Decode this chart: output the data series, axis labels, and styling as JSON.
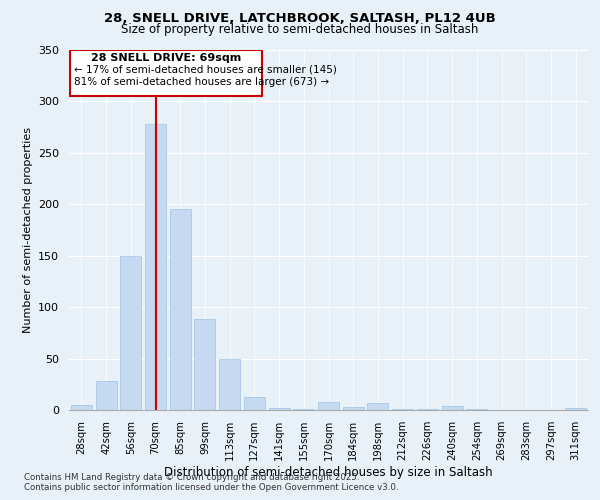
{
  "title_line1": "28, SNELL DRIVE, LATCHBROOK, SALTASH, PL12 4UB",
  "title_line2": "Size of property relative to semi-detached houses in Saltash",
  "xlabel": "Distribution of semi-detached houses by size in Saltash",
  "ylabel": "Number of semi-detached properties",
  "footer_line1": "Contains HM Land Registry data © Crown copyright and database right 2025.",
  "footer_line2": "Contains public sector information licensed under the Open Government Licence v3.0.",
  "annotation_title": "28 SNELL DRIVE: 69sqm",
  "annotation_line1": "← 17% of semi-detached houses are smaller (145)",
  "annotation_line2": "81% of semi-detached houses are larger (673) →",
  "highlight_bar_index": 3,
  "categories": [
    "28sqm",
    "42sqm",
    "56sqm",
    "70sqm",
    "85sqm",
    "99sqm",
    "113sqm",
    "127sqm",
    "141sqm",
    "155sqm",
    "170sqm",
    "184sqm",
    "198sqm",
    "212sqm",
    "226sqm",
    "240sqm",
    "254sqm",
    "269sqm",
    "283sqm",
    "297sqm",
    "311sqm"
  ],
  "values": [
    5,
    28,
    150,
    278,
    195,
    88,
    50,
    13,
    2,
    1,
    8,
    3,
    7,
    1,
    1,
    4,
    1,
    0,
    0,
    0,
    2
  ],
  "bar_color_normal": "#c5d9f0",
  "bar_edge_color": "#9fc3e8",
  "highlight_line_color": "#cc0000",
  "ylim": [
    0,
    350
  ],
  "yticks": [
    0,
    50,
    100,
    150,
    200,
    250,
    300,
    350
  ],
  "background_color": "#e8f0f8",
  "plot_bg_color": "#e8f0f8",
  "grid_color": "#ffffff",
  "annotation_border_color": "#cc0000",
  "annotation_face_color": "#ffffff"
}
